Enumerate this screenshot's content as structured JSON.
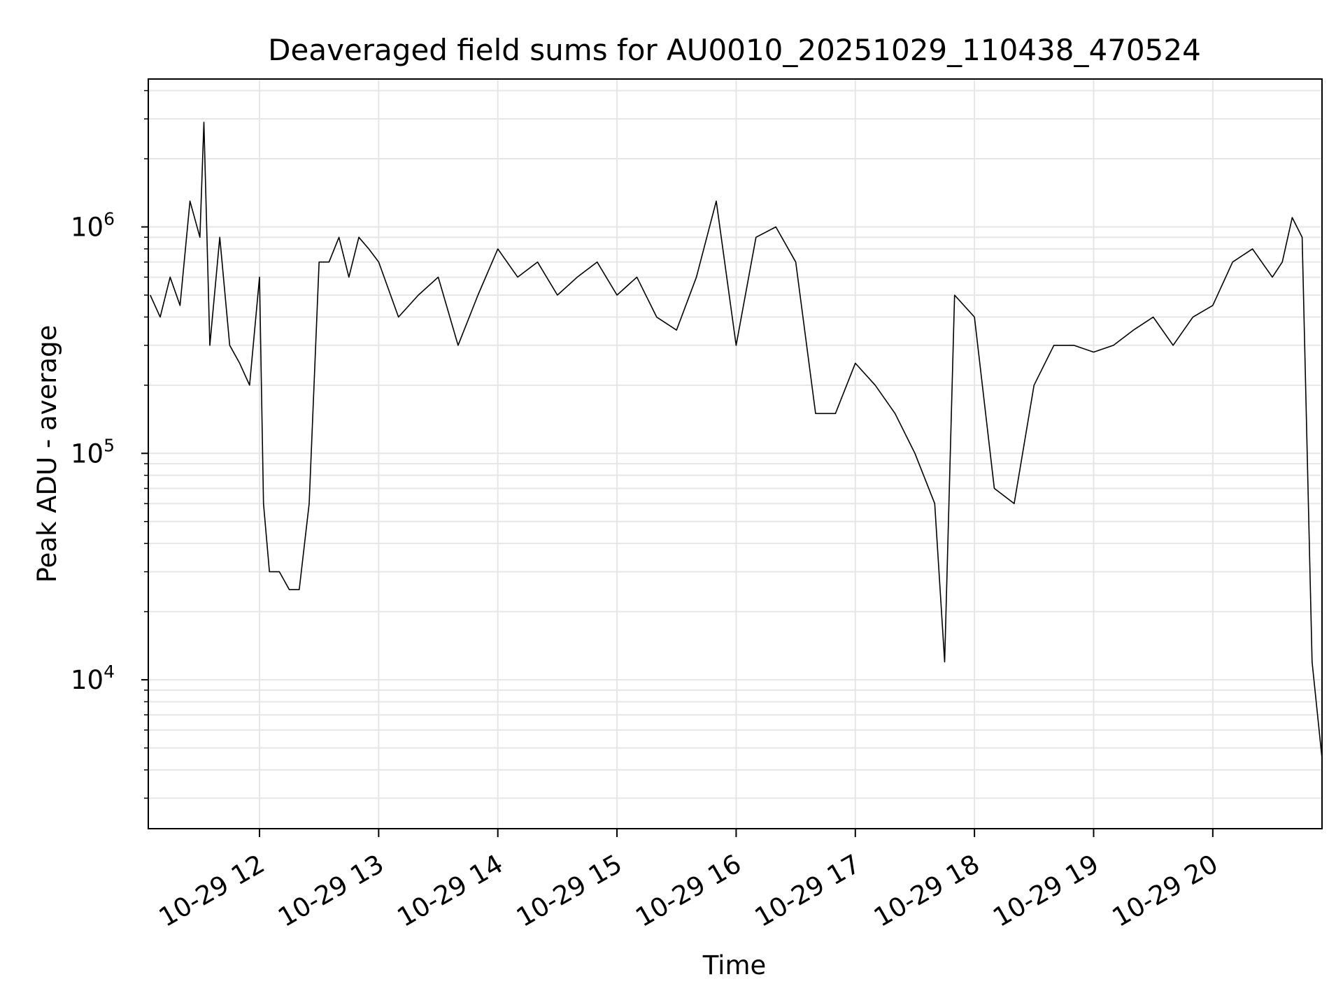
{
  "chart_data": {
    "type": "line",
    "title": "Deaveraged field sums for AU0010_20251029_110438_470524",
    "xlabel": "Time",
    "ylabel": "Peak ADU - average",
    "yscale": "log",
    "grid": true,
    "x_ticks": [
      "10-29 12",
      "10-29 13",
      "10-29 14",
      "10-29 15",
      "10-29 16",
      "10-29 17",
      "10-29 18",
      "10-29 19",
      "10-29 20"
    ],
    "y_ticks": [
      {
        "base": "10",
        "exp": "4",
        "value": 10000
      },
      {
        "base": "10",
        "exp": "5",
        "value": 100000
      },
      {
        "base": "10",
        "exp": "6",
        "value": 1000000
      }
    ],
    "xlim": [
      "2025-10-29 11:04",
      "2025-10-29 20:55"
    ],
    "ylim": [
      2200,
      4500000
    ],
    "line_color": "#000000",
    "series": [
      {
        "x": [
          "2025-10-29 11:05",
          "2025-10-29 11:10",
          "2025-10-29 11:15",
          "2025-10-29 11:20",
          "2025-10-29 11:25",
          "2025-10-29 11:30",
          "2025-10-29 11:32",
          "2025-10-29 11:35",
          "2025-10-29 11:40",
          "2025-10-29 11:45",
          "2025-10-29 11:50",
          "2025-10-29 11:55",
          "2025-10-29 12:00",
          "2025-10-29 12:02",
          "2025-10-29 12:05",
          "2025-10-29 12:10",
          "2025-10-29 12:15",
          "2025-10-29 12:20",
          "2025-10-29 12:25",
          "2025-10-29 12:30",
          "2025-10-29 12:35",
          "2025-10-29 12:40",
          "2025-10-29 12:45",
          "2025-10-29 12:50",
          "2025-10-29 12:55",
          "2025-10-29 13:00",
          "2025-10-29 13:10",
          "2025-10-29 13:20",
          "2025-10-29 13:30",
          "2025-10-29 13:40",
          "2025-10-29 13:50",
          "2025-10-29 14:00",
          "2025-10-29 14:10",
          "2025-10-29 14:20",
          "2025-10-29 14:30",
          "2025-10-29 14:40",
          "2025-10-29 14:50",
          "2025-10-29 15:00",
          "2025-10-29 15:10",
          "2025-10-29 15:20",
          "2025-10-29 15:30",
          "2025-10-29 15:40",
          "2025-10-29 15:50",
          "2025-10-29 16:00",
          "2025-10-29 16:10",
          "2025-10-29 16:20",
          "2025-10-29 16:30",
          "2025-10-29 16:40",
          "2025-10-29 16:50",
          "2025-10-29 17:00",
          "2025-10-29 17:10",
          "2025-10-29 17:20",
          "2025-10-29 17:30",
          "2025-10-29 17:40",
          "2025-10-29 17:45",
          "2025-10-29 17:50",
          "2025-10-29 18:00",
          "2025-10-29 18:10",
          "2025-10-29 18:20",
          "2025-10-29 18:30",
          "2025-10-29 18:40",
          "2025-10-29 18:50",
          "2025-10-29 19:00",
          "2025-10-29 19:10",
          "2025-10-29 19:20",
          "2025-10-29 19:30",
          "2025-10-29 19:40",
          "2025-10-29 19:50",
          "2025-10-29 20:00",
          "2025-10-29 20:10",
          "2025-10-29 20:20",
          "2025-10-29 20:30",
          "2025-10-29 20:35",
          "2025-10-29 20:40",
          "2025-10-29 20:45",
          "2025-10-29 20:50",
          "2025-10-29 20:55"
        ],
        "values": [
          500000,
          400000,
          600000,
          450000,
          1300000,
          900000,
          2900000,
          300000,
          900000,
          300000,
          250000,
          200000,
          600000,
          60000,
          30000,
          30000,
          25000,
          25000,
          60000,
          700000,
          700000,
          900000,
          600000,
          900000,
          800000,
          700000,
          400000,
          500000,
          600000,
          300000,
          500000,
          800000,
          600000,
          700000,
          500000,
          600000,
          700000,
          500000,
          600000,
          400000,
          350000,
          600000,
          1300000,
          300000,
          900000,
          1000000,
          700000,
          150000,
          150000,
          250000,
          200000,
          150000,
          100000,
          60000,
          12000,
          500000,
          400000,
          70000,
          60000,
          200000,
          300000,
          300000,
          280000,
          300000,
          350000,
          400000,
          300000,
          400000,
          450000,
          700000,
          800000,
          600000,
          700000,
          1100000,
          900000,
          12000,
          4500
        ]
      }
    ]
  }
}
